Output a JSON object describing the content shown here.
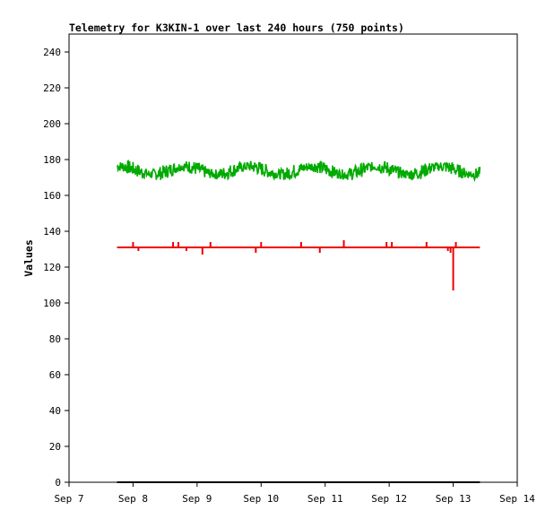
{
  "chart_data": {
    "type": "line",
    "title": "Telemetry for K3KIN-1 over last 240 hours (750 points)",
    "xlabel": "",
    "ylabel": "Values",
    "xlim": [
      "Sep 7",
      "Sep 14"
    ],
    "ylim": [
      0,
      250
    ],
    "x_ticks": [
      "Sep 7",
      "Sep 8",
      "Sep 9",
      "Sep 10",
      "Sep 11",
      "Sep 12",
      "Sep 13",
      "Sep 14"
    ],
    "y_ticks": [
      0,
      20,
      40,
      60,
      80,
      100,
      120,
      140,
      160,
      180,
      200,
      220,
      240
    ],
    "grid": false,
    "legend": "none",
    "series": [
      {
        "color": "#00aa00",
        "x_range": [
          "Sep 7 18:00",
          "Sep 13 10:00"
        ],
        "typical_range": [
          168,
          180
        ],
        "approx_mean": 174
      },
      {
        "color": "#ee0000",
        "x_range": [
          "Sep 7 18:00",
          "Sep 13 10:00"
        ],
        "baseline": 131,
        "spikes": [
          {
            "x": "Sep 8 00:00",
            "y": 134
          },
          {
            "x": "Sep 8 02:00",
            "y": 129
          },
          {
            "x": "Sep 8 15:00",
            "y": 134
          },
          {
            "x": "Sep 8 17:00",
            "y": 134
          },
          {
            "x": "Sep 8 20:00",
            "y": 129
          },
          {
            "x": "Sep 9 02:00",
            "y": 127
          },
          {
            "x": "Sep 9 05:00",
            "y": 134
          },
          {
            "x": "Sep 9 22:00",
            "y": 128
          },
          {
            "x": "Sep 10 00:00",
            "y": 134
          },
          {
            "x": "Sep 10 15:00",
            "y": 134
          },
          {
            "x": "Sep 10 22:00",
            "y": 128
          },
          {
            "x": "Sep 11 07:00",
            "y": 135
          },
          {
            "x": "Sep 11 23:00",
            "y": 134
          },
          {
            "x": "Sep 12 01:00",
            "y": 134
          },
          {
            "x": "Sep 12 14:00",
            "y": 134
          },
          {
            "x": "Sep 12 22:00",
            "y": 129
          },
          {
            "x": "Sep 12 23:00",
            "y": 128
          },
          {
            "x": "Sep 13 00:00",
            "y": 107
          },
          {
            "x": "Sep 13 01:00",
            "y": 134
          }
        ]
      },
      {
        "color": "#000000",
        "x_range": [
          "Sep 7 18:00",
          "Sep 13 10:00"
        ],
        "baseline": 0
      }
    ]
  }
}
